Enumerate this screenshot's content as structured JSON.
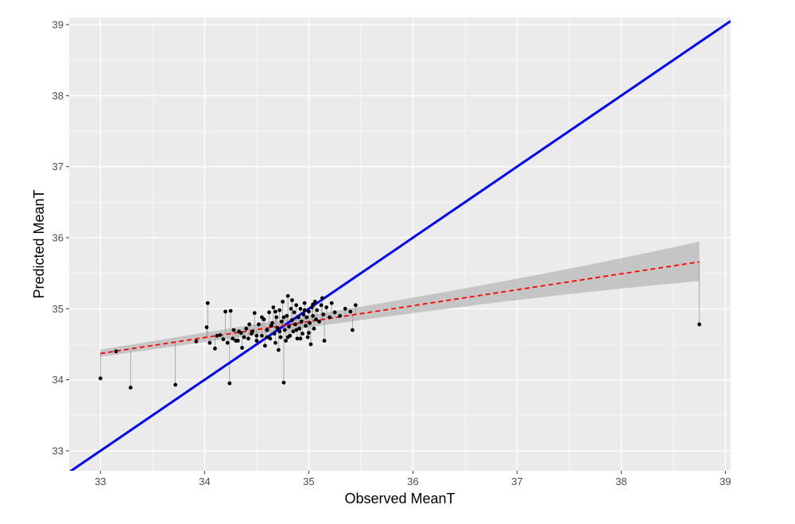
{
  "chart_data": {
    "type": "scatter",
    "title": "",
    "xlabel": "Observed MeanT",
    "ylabel": "Predicted MeanT",
    "xlim": [
      32.7,
      39.05
    ],
    "ylim": [
      32.72,
      39.1
    ],
    "xticks": [
      33,
      34,
      35,
      36,
      37,
      38,
      39
    ],
    "yticks": [
      33,
      34,
      35,
      36,
      37,
      38,
      39
    ],
    "grid": true,
    "legend": "none",
    "identity_line": {
      "color": "#0000ff",
      "slope": 1,
      "intercept": 0
    },
    "fit_line": {
      "color": "#ff0000",
      "style": "dashed",
      "x": [
        33.0,
        38.75
      ],
      "y": [
        34.37,
        35.66
      ],
      "ci_lower": [
        34.31,
        35.47
      ],
      "ci_upper": [
        34.44,
        35.86
      ],
      "ci_color": "#bebebe"
    },
    "points": [
      [
        33.0,
        34.02
      ],
      [
        33.15,
        34.4
      ],
      [
        33.29,
        33.89
      ],
      [
        33.72,
        33.93
      ],
      [
        33.92,
        34.54
      ],
      [
        34.02,
        34.74
      ],
      [
        34.03,
        35.08
      ],
      [
        34.05,
        34.52
      ],
      [
        34.1,
        34.44
      ],
      [
        34.15,
        34.63
      ],
      [
        34.18,
        34.57
      ],
      [
        34.2,
        34.96
      ],
      [
        34.22,
        34.52
      ],
      [
        34.24,
        33.95
      ],
      [
        34.25,
        34.97
      ],
      [
        34.27,
        34.58
      ],
      [
        34.28,
        34.7
      ],
      [
        34.3,
        34.55
      ],
      [
        34.33,
        34.68
      ],
      [
        34.36,
        34.45
      ],
      [
        34.38,
        34.6
      ],
      [
        34.4,
        34.72
      ],
      [
        34.42,
        34.58
      ],
      [
        34.45,
        34.65
      ],
      [
        34.48,
        34.94
      ],
      [
        34.5,
        34.55
      ],
      [
        34.52,
        34.78
      ],
      [
        34.55,
        34.62
      ],
      [
        34.57,
        34.85
      ],
      [
        34.58,
        34.48
      ],
      [
        34.6,
        34.7
      ],
      [
        34.62,
        34.95
      ],
      [
        34.63,
        34.58
      ],
      [
        34.65,
        34.8
      ],
      [
        34.66,
        35.02
      ],
      [
        34.67,
        34.65
      ],
      [
        34.68,
        34.52
      ],
      [
        34.69,
        34.88
      ],
      [
        34.7,
        34.73
      ],
      [
        34.71,
        34.42
      ],
      [
        34.72,
        34.98
      ],
      [
        34.73,
        34.6
      ],
      [
        34.74,
        34.82
      ],
      [
        34.75,
        35.1
      ],
      [
        34.76,
        33.96
      ],
      [
        34.77,
        34.7
      ],
      [
        34.78,
        34.55
      ],
      [
        34.79,
        34.9
      ],
      [
        34.8,
        35.18
      ],
      [
        34.81,
        34.75
      ],
      [
        34.82,
        34.62
      ],
      [
        34.83,
        35.0
      ],
      [
        34.84,
        34.84
      ],
      [
        34.85,
        34.68
      ],
      [
        34.86,
        34.95
      ],
      [
        34.87,
        34.78
      ],
      [
        34.88,
        35.05
      ],
      [
        34.89,
        34.58
      ],
      [
        34.9,
        34.88
      ],
      [
        34.91,
        34.72
      ],
      [
        34.92,
        35.0
      ],
      [
        34.93,
        34.82
      ],
      [
        34.94,
        34.65
      ],
      [
        34.95,
        34.92
      ],
      [
        34.96,
        35.08
      ],
      [
        34.97,
        34.76
      ],
      [
        34.98,
        34.88
      ],
      [
        34.99,
        34.6
      ],
      [
        35.0,
        34.96
      ],
      [
        35.01,
        34.8
      ],
      [
        35.02,
        34.5
      ],
      [
        35.03,
        35.02
      ],
      [
        35.04,
        34.9
      ],
      [
        35.05,
        34.72
      ],
      [
        35.06,
        35.1
      ],
      [
        35.07,
        34.85
      ],
      [
        35.08,
        34.98
      ],
      [
        35.1,
        34.82
      ],
      [
        35.12,
        35.05
      ],
      [
        35.13,
        35.15
      ],
      [
        35.14,
        34.92
      ],
      [
        35.15,
        34.55
      ],
      [
        35.17,
        35.02
      ],
      [
        35.2,
        34.88
      ],
      [
        35.22,
        35.08
      ],
      [
        35.25,
        34.95
      ],
      [
        35.3,
        34.9
      ],
      [
        35.35,
        35.0
      ],
      [
        35.4,
        34.96
      ],
      [
        35.42,
        34.7
      ],
      [
        35.45,
        35.05
      ],
      [
        34.55,
        34.88
      ],
      [
        34.6,
        34.6
      ],
      [
        34.64,
        34.76
      ],
      [
        34.68,
        34.96
      ],
      [
        34.72,
        34.68
      ],
      [
        34.76,
        34.88
      ],
      [
        34.8,
        34.6
      ],
      [
        34.84,
        35.12
      ],
      [
        34.88,
        34.7
      ],
      [
        34.92,
        34.58
      ],
      [
        34.96,
        34.98
      ],
      [
        35.0,
        34.66
      ],
      [
        35.04,
        35.06
      ],
      [
        34.5,
        34.62
      ],
      [
        34.46,
        34.68
      ],
      [
        34.43,
        34.78
      ],
      [
        34.35,
        34.66
      ],
      [
        34.32,
        34.55
      ],
      [
        34.12,
        34.62
      ],
      [
        38.75,
        34.78
      ]
    ]
  }
}
